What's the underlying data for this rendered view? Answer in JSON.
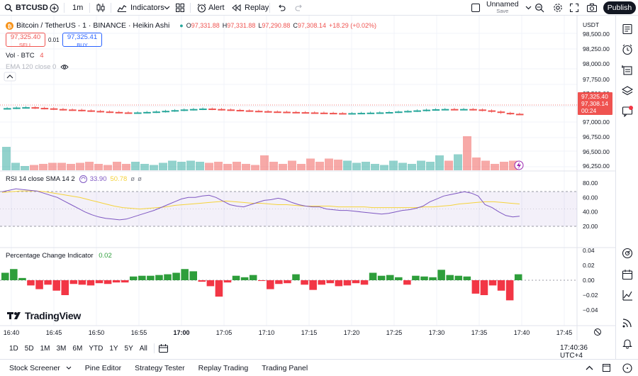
{
  "toolbar": {
    "symbol": "BTCUSD",
    "interval": "1m",
    "indicators_label": "Indicators",
    "alert_label": "Alert",
    "replay_label": "Replay",
    "layout_name": "Unnamed",
    "layout_status": "Save",
    "publish_label": "Publish"
  },
  "legend": {
    "title": "Bitcoin / TetherUS · 1 · BINANCE · Heikin Ashi",
    "o_label": "O",
    "o_value": "97,331.88",
    "h_label": "H",
    "h_value": "97,331.88",
    "l_label": "L",
    "l_value": "97,290.88",
    "c_label": "C",
    "c_value": "97,308.14",
    "change": "+18.29 (+0.02%)",
    "sell_price": "97,325.40",
    "sell_label": "SELL",
    "spread": "0.01",
    "buy_price": "97,325.41",
    "buy_label": "BUY",
    "vol_label": "Vol · BTC",
    "vol_value": "4",
    "ema_label": "EMA 120 close 0"
  },
  "price_axis": {
    "currency": "USDT",
    "ticks": [
      "98,500.00",
      "98,250.00",
      "98,000.00",
      "97,750.00",
      "97,500.00",
      "97,000.00",
      "96,750.00",
      "96,500.00",
      "96,250.00"
    ],
    "last_price": "97,325.40",
    "close_price": "97,308.14",
    "countdown": "00:24"
  },
  "rsi": {
    "label": "RSI 14 close SMA 14 2",
    "value1": "33.90",
    "value2": "50.78",
    "ticks": [
      "80.00",
      "60.00",
      "40.00",
      "20.00"
    ]
  },
  "pci": {
    "label": "Percentage Change Indicator",
    "value": "0.02",
    "ticks": [
      "0.04",
      "0.02",
      "0.00",
      "−0.02",
      "−0.04"
    ]
  },
  "time_axis": {
    "ticks": [
      "16:40",
      "16:45",
      "16:50",
      "16:55",
      "17:00",
      "17:05",
      "17:10",
      "17:15",
      "17:20",
      "17:25",
      "17:30",
      "17:35",
      "17:40",
      "17:45"
    ]
  },
  "logo_text": "TradingView",
  "ranges": [
    "1D",
    "5D",
    "1M",
    "3M",
    "6M",
    "YTD",
    "1Y",
    "5Y",
    "All"
  ],
  "clock": "17:40:36 UTC+4",
  "footer_tabs": [
    "Stock Screener",
    "Pine Editor",
    "Strategy Tester",
    "Replay Trading",
    "Trading Panel"
  ],
  "colors": {
    "up": "#26a69a",
    "down": "#ef5350",
    "rsi": "#7e57c2",
    "rsi_ma": "#f5d33b",
    "pci_up": "#2e9e3b",
    "pci_down": "#f23645"
  },
  "chart_data": {
    "candles_close": [
      97360,
      97365,
      97368,
      97362,
      97358,
      97352,
      97348,
      97345,
      97340,
      97335,
      97330,
      97326,
      97322,
      97320,
      97322,
      97326,
      97330,
      97336,
      97342,
      97348,
      97352,
      97356,
      97352,
      97348,
      97344,
      97340,
      97336,
      97333,
      97330,
      97328,
      97326,
      97324,
      97322,
      97320,
      97318,
      97316,
      97315,
      97316,
      97318,
      97320,
      97322,
      97325,
      97330,
      97335,
      97340,
      97346,
      97350,
      97352,
      97350,
      97352,
      97348,
      97340,
      97330,
      97318,
      97310,
      97308
    ],
    "volume": [
      110,
      35,
      20,
      25,
      30,
      35,
      35,
      30,
      35,
      40,
      30,
      25,
      40,
      30,
      40,
      30,
      25,
      35,
      45,
      40,
      45,
      40,
      35,
      40,
      30,
      40,
      30,
      25,
      70,
      40,
      30,
      45,
      30,
      55,
      40,
      55,
      50,
      45,
      35,
      40,
      30,
      25,
      45,
      35,
      30,
      45,
      40,
      70,
      45,
      75,
      160,
      60,
      45,
      30,
      40,
      45
    ],
    "rsi": [
      68,
      70,
      72,
      71,
      70,
      69,
      66,
      63,
      60,
      55,
      50,
      45,
      40,
      36,
      33,
      31,
      30,
      29,
      30,
      33,
      36,
      39,
      42,
      46,
      50,
      54,
      58,
      60,
      60,
      62,
      63,
      60,
      55,
      50,
      48,
      47,
      50,
      53,
      56,
      57,
      59,
      57,
      53,
      50,
      48,
      47,
      47,
      44,
      43,
      42,
      42,
      41,
      40,
      39,
      38,
      37,
      38,
      40,
      42,
      43,
      45,
      48,
      54,
      58,
      62,
      64,
      66,
      68,
      66,
      62,
      50,
      46,
      40,
      35,
      33,
      34
    ],
    "rsi_ma": [
      67,
      68,
      69,
      69,
      69,
      68,
      66,
      64,
      62,
      60,
      57,
      54,
      51,
      48,
      46,
      45,
      44,
      45,
      46,
      47,
      49,
      50,
      51,
      52,
      53,
      54,
      55,
      54,
      53,
      52,
      52,
      51,
      50,
      50,
      49,
      48,
      48,
      48,
      48,
      47,
      47,
      47,
      47,
      46,
      46,
      46,
      46,
      46,
      46,
      47,
      47,
      48,
      49,
      51,
      52,
      53,
      54,
      54,
      53,
      52,
      51
    ],
    "pci": [
      0.01,
      0.015,
      0.003,
      -0.007,
      -0.012,
      -0.006,
      -0.014,
      -0.02,
      -0.005,
      -0.006,
      -0.007,
      -0.004,
      -0.005,
      -0.003,
      -0.003,
      0.005,
      0.006,
      0.006,
      0.007,
      0.008,
      0.01,
      0.015,
      0.012,
      -0.002,
      -0.008,
      -0.022,
      -0.003,
      0.006,
      0.004,
      0.007,
      -0.001,
      -0.012,
      -0.005,
      -0.004,
      0.008,
      -0.006,
      -0.013,
      -0.006,
      -0.004,
      -0.008,
      -0.007,
      -0.004,
      -0.006,
      0.01,
      0.006,
      0.007,
      0.004,
      -0.006,
      0.006,
      0.005,
      0.004,
      0.014,
      0.007,
      0.006,
      0.005,
      -0.018,
      -0.02,
      -0.007,
      -0.014,
      -0.027,
      0.008
    ]
  }
}
